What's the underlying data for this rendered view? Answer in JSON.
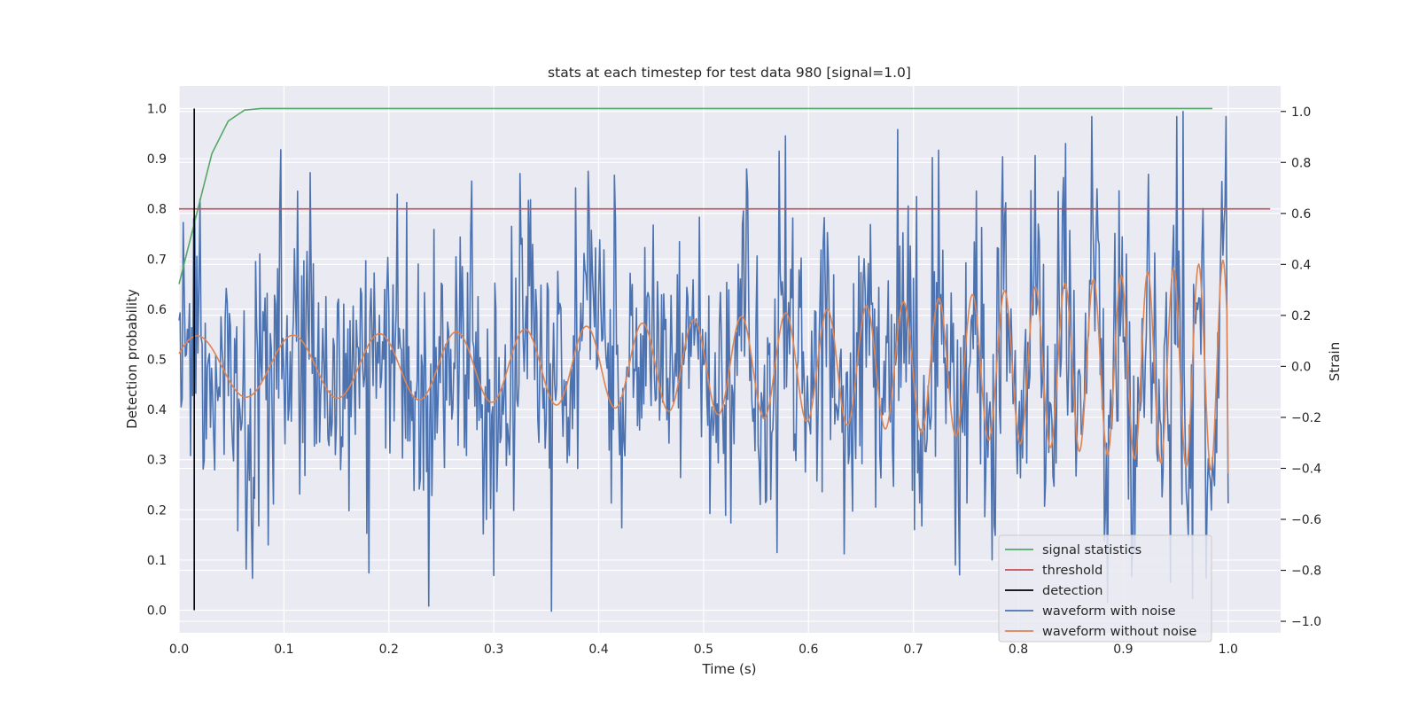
{
  "chart_data": {
    "type": "line",
    "title": "stats at each timestep for test data 980 [signal=1.0]",
    "xlabel": "Time (s)",
    "ylabel": "Detection probability",
    "ylabel_right": "Strain",
    "xlim": [
      0.0,
      1.05
    ],
    "ylim": [
      -0.045,
      1.045
    ],
    "ylim_right": [
      -1.045,
      1.1
    ],
    "xticks": [
      "0.0",
      "0.1",
      "0.2",
      "0.3",
      "0.4",
      "0.5",
      "0.6",
      "0.7",
      "0.8",
      "0.9",
      "1.0"
    ],
    "yticks": [
      "0.0",
      "0.1",
      "0.2",
      "0.3",
      "0.4",
      "0.5",
      "0.6",
      "0.7",
      "0.8",
      "0.9",
      "1.0"
    ],
    "yticks_right": [
      "−1.0",
      "−0.8",
      "−0.6",
      "−0.4",
      "−0.2",
      "0.0",
      "0.2",
      "0.4",
      "0.6",
      "0.8",
      "1.0"
    ],
    "grid": true,
    "legend_position": "lower-right",
    "series": [
      {
        "name": "signal statistics",
        "axis": "left",
        "color": "#55a868",
        "x": [
          0.0,
          0.0156,
          0.0313,
          0.0469,
          0.0625,
          0.0781,
          0.0938,
          0.2,
          0.4,
          0.6,
          0.8,
          0.985
        ],
        "y": [
          0.65,
          0.78,
          0.91,
          0.975,
          0.997,
          1.0,
          1.0,
          1.0,
          1.0,
          1.0,
          1.0,
          1.0
        ]
      },
      {
        "name": "threshold",
        "axis": "left",
        "color": "#c44e52",
        "x": [
          0.0,
          1.04
        ],
        "y": [
          0.8,
          0.8
        ]
      },
      {
        "name": "detection",
        "axis": "left",
        "color": "#000000",
        "x": [
          0.0145,
          0.0145
        ],
        "y": [
          0.0,
          1.0
        ]
      },
      {
        "name": "waveform with noise",
        "axis": "right",
        "color": "#4c72b0",
        "x_range": [
          0.0,
          1.0
        ],
        "n_points": 1000,
        "points": [
          [
            0.097,
            0.85
          ],
          [
            0.125,
            0.76
          ],
          [
            0.181,
            -0.81
          ],
          [
            0.238,
            -0.94
          ],
          [
            0.378,
            0.7
          ],
          [
            0.415,
            0.75
          ],
          [
            0.538,
            0.61
          ],
          [
            0.57,
            -0.73
          ],
          [
            0.957,
            1.0
          ],
          [
            0.966,
            -0.91
          ],
          [
            0.979,
            -0.83
          ]
        ]
      },
      {
        "name": "waveform without noise",
        "axis": "right",
        "color": "#dd8452",
        "x_range": [
          0.0,
          1.0
        ],
        "start_value": 0.05,
        "start_amplitude": 0.12,
        "end_amplitude": 0.42,
        "start_frequency_hz": 10.5,
        "end_frequency_hz": 44,
        "final_value": -0.42
      }
    ]
  }
}
